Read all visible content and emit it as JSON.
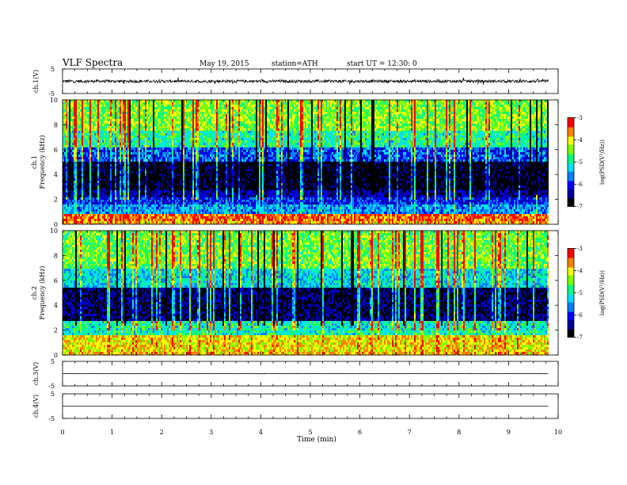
{
  "header": {
    "title": "VLF  Spectra",
    "date": "May 19, 2015",
    "station": "station=ATH",
    "start": "start  UT =    12:30: 0"
  },
  "chart_data": [
    {
      "type": "line",
      "panel": "ch1-waveform",
      "ylabel": "ch.1(V)",
      "ylim": [
        -5,
        5
      ],
      "yticks": [
        "5",
        "-5"
      ],
      "baseline": 0,
      "noise_amplitude": 0.6,
      "spike_amplitude": 1.2
    },
    {
      "type": "heatmap",
      "panel": "ch1-spectrogram",
      "ylabel_line1": "ch.1",
      "ylabel_line2": "Frequency  (kHz)",
      "ylim": [
        0,
        10
      ],
      "yticks": [
        "0",
        "2",
        "4",
        "6",
        "8",
        "10"
      ],
      "colorbar": {
        "label": "log(PSD(V²/Hz))",
        "range": [
          -7,
          -3
        ],
        "ticks": [
          "-3",
          "-4",
          "-5",
          "-6",
          "-7"
        ]
      },
      "bands": [
        {
          "from": 0,
          "to": 0.3,
          "level": -3.8
        },
        {
          "from": 0.3,
          "to": 0.9,
          "level": -3.5
        },
        {
          "from": 0.9,
          "to": 1.6,
          "level": -5.5
        },
        {
          "from": 1.6,
          "to": 2.2,
          "level": -6.0
        },
        {
          "from": 2.2,
          "to": 2.9,
          "level": -6.4
        },
        {
          "from": 2.9,
          "to": 5.2,
          "level": -6.9
        },
        {
          "from": 5.2,
          "to": 6.2,
          "level": -5.8
        },
        {
          "from": 6.2,
          "to": 7.6,
          "level": -4.9
        },
        {
          "from": 7.6,
          "to": 10,
          "level": -4.4
        }
      ]
    },
    {
      "type": "heatmap",
      "panel": "ch2-spectrogram",
      "ylabel_line1": "ch.2",
      "ylabel_line2": "Frequency  (kHz)",
      "ylim": [
        0,
        10
      ],
      "yticks": [
        "0",
        "2",
        "4",
        "6",
        "8",
        "10"
      ],
      "colorbar": {
        "label": "log(PSD(V²/Hz))",
        "range": [
          -7,
          -3
        ],
        "ticks": [
          "-3",
          "-4",
          "-5",
          "-6",
          "-7"
        ]
      },
      "bands": [
        {
          "from": 0,
          "to": 0.3,
          "level": -3.8
        },
        {
          "from": 0.3,
          "to": 1.6,
          "level": -4.0
        },
        {
          "from": 1.6,
          "to": 2.9,
          "level": -5.0
        },
        {
          "from": 2.9,
          "to": 5.5,
          "level": -6.6
        },
        {
          "from": 5.5,
          "to": 7.0,
          "level": -5.2
        },
        {
          "from": 7.0,
          "to": 10,
          "level": -4.5
        }
      ]
    },
    {
      "type": "line",
      "panel": "ch3-waveform",
      "ylabel": "ch.3(V)",
      "ylim": [
        -5,
        5
      ],
      "yticks": [
        "5",
        "-5"
      ],
      "baseline": 0,
      "noise_amplitude": 0.05,
      "spike_amplitude": 0.15
    },
    {
      "type": "line",
      "panel": "ch4-waveform",
      "ylabel": "ch.4(V)",
      "ylim": [
        -5,
        5
      ],
      "yticks": [
        "5",
        "-5"
      ],
      "baseline": 0,
      "noise_amplitude": 0.0,
      "spike_amplitude": 0.0
    }
  ],
  "xaxis": {
    "xlabel": "Time  (min)",
    "xlim": [
      0,
      10
    ],
    "data_end": 9.8,
    "xticks": [
      "0",
      "1",
      "2",
      "3",
      "4",
      "5",
      "6",
      "7",
      "8",
      "9",
      "10"
    ]
  },
  "colormap": [
    "#000000",
    "#0000a0",
    "#0000ff",
    "#0080ff",
    "#00e0ff",
    "#00ff80",
    "#80ff00",
    "#ffff00",
    "#ff8000",
    "#ff0000",
    "#ffffff"
  ]
}
